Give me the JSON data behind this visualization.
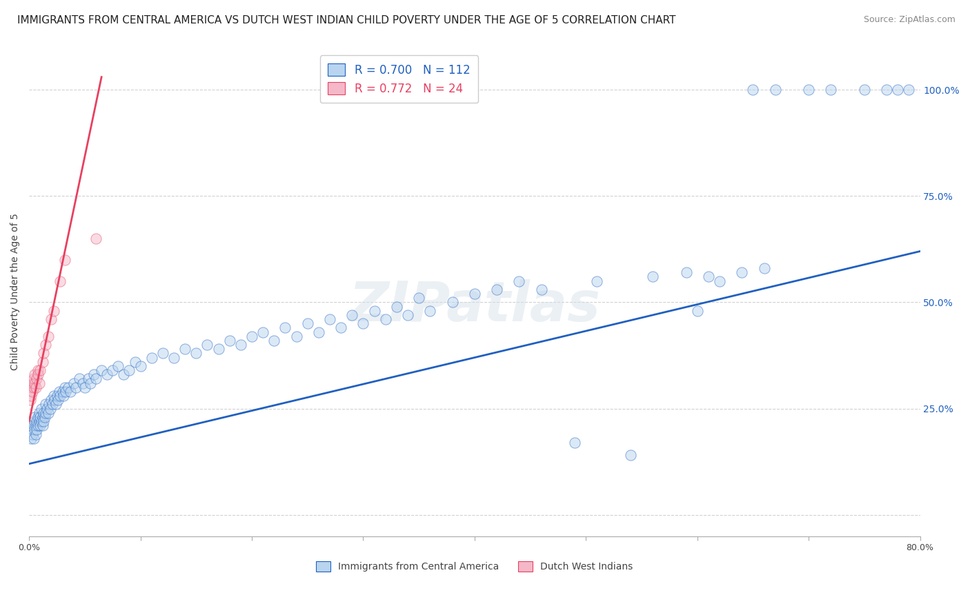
{
  "title": "IMMIGRANTS FROM CENTRAL AMERICA VS DUTCH WEST INDIAN CHILD POVERTY UNDER THE AGE OF 5 CORRELATION CHART",
  "source": "Source: ZipAtlas.com",
  "ylabel": "Child Poverty Under the Age of 5",
  "xlim": [
    0.0,
    0.8
  ],
  "ylim": [
    -0.05,
    1.1
  ],
  "xticks": [
    0.0,
    0.1,
    0.2,
    0.3,
    0.4,
    0.5,
    0.6,
    0.7,
    0.8
  ],
  "xticklabels": [
    "0.0%",
    "",
    "",
    "",
    "",
    "",
    "",
    "",
    "80.0%"
  ],
  "ytick_positions": [
    0.0,
    0.25,
    0.5,
    0.75,
    1.0
  ],
  "yticklabels_right": [
    "",
    "25.0%",
    "50.0%",
    "75.0%",
    "100.0%"
  ],
  "watermark": "ZIPatlas",
  "blue_R": "0.700",
  "blue_N": "112",
  "pink_R": "0.772",
  "pink_N": "24",
  "blue_color": "#b8d4ef",
  "pink_color": "#f5b8c8",
  "blue_line_color": "#2060c0",
  "pink_line_color": "#e84060",
  "legend_label_blue": "Immigrants from Central America",
  "legend_label_pink": "Dutch West Indians",
  "blue_scatter_x": [
    0.002,
    0.003,
    0.003,
    0.004,
    0.004,
    0.005,
    0.005,
    0.005,
    0.006,
    0.006,
    0.007,
    0.007,
    0.008,
    0.008,
    0.009,
    0.009,
    0.01,
    0.01,
    0.011,
    0.011,
    0.012,
    0.012,
    0.013,
    0.013,
    0.014,
    0.015,
    0.015,
    0.016,
    0.017,
    0.018,
    0.019,
    0.02,
    0.021,
    0.022,
    0.023,
    0.024,
    0.025,
    0.026,
    0.027,
    0.028,
    0.03,
    0.031,
    0.032,
    0.033,
    0.035,
    0.037,
    0.04,
    0.042,
    0.045,
    0.048,
    0.05,
    0.053,
    0.055,
    0.058,
    0.06,
    0.065,
    0.07,
    0.075,
    0.08,
    0.085,
    0.09,
    0.095,
    0.1,
    0.11,
    0.12,
    0.13,
    0.14,
    0.15,
    0.16,
    0.17,
    0.18,
    0.19,
    0.2,
    0.21,
    0.22,
    0.23,
    0.24,
    0.25,
    0.26,
    0.27,
    0.28,
    0.29,
    0.3,
    0.31,
    0.32,
    0.33,
    0.34,
    0.35,
    0.36,
    0.38,
    0.4,
    0.42,
    0.44,
    0.46,
    0.49,
    0.51,
    0.54,
    0.56,
    0.6,
    0.62,
    0.65,
    0.67,
    0.7,
    0.72,
    0.75,
    0.77,
    0.78,
    0.79,
    0.59,
    0.61,
    0.64,
    0.66
  ],
  "blue_scatter_y": [
    0.18,
    0.2,
    0.19,
    0.21,
    0.18,
    0.22,
    0.2,
    0.23,
    0.19,
    0.21,
    0.22,
    0.2,
    0.23,
    0.21,
    0.24,
    0.22,
    0.21,
    0.23,
    0.22,
    0.25,
    0.23,
    0.21,
    0.24,
    0.22,
    0.23,
    0.24,
    0.26,
    0.25,
    0.24,
    0.26,
    0.25,
    0.27,
    0.26,
    0.28,
    0.27,
    0.26,
    0.28,
    0.27,
    0.29,
    0.28,
    0.29,
    0.28,
    0.3,
    0.29,
    0.3,
    0.29,
    0.31,
    0.3,
    0.32,
    0.31,
    0.3,
    0.32,
    0.31,
    0.33,
    0.32,
    0.34,
    0.33,
    0.34,
    0.35,
    0.33,
    0.34,
    0.36,
    0.35,
    0.37,
    0.38,
    0.37,
    0.39,
    0.38,
    0.4,
    0.39,
    0.41,
    0.4,
    0.42,
    0.43,
    0.41,
    0.44,
    0.42,
    0.45,
    0.43,
    0.46,
    0.44,
    0.47,
    0.45,
    0.48,
    0.46,
    0.49,
    0.47,
    0.51,
    0.48,
    0.5,
    0.52,
    0.53,
    0.55,
    0.53,
    0.17,
    0.55,
    0.14,
    0.56,
    0.48,
    0.55,
    1.0,
    1.0,
    1.0,
    1.0,
    1.0,
    1.0,
    1.0,
    1.0,
    0.57,
    0.56,
    0.57,
    0.58
  ],
  "pink_scatter_x": [
    0.001,
    0.002,
    0.002,
    0.003,
    0.003,
    0.004,
    0.004,
    0.005,
    0.005,
    0.006,
    0.007,
    0.008,
    0.008,
    0.009,
    0.01,
    0.012,
    0.013,
    0.015,
    0.017,
    0.02,
    0.022,
    0.028,
    0.032,
    0.06
  ],
  "pink_scatter_y": [
    0.27,
    0.28,
    0.3,
    0.29,
    0.31,
    0.3,
    0.32,
    0.31,
    0.33,
    0.3,
    0.32,
    0.34,
    0.33,
    0.31,
    0.34,
    0.36,
    0.38,
    0.4,
    0.42,
    0.46,
    0.48,
    0.55,
    0.6,
    0.65
  ],
  "blue_line_x0": 0.0,
  "blue_line_x1": 0.8,
  "blue_line_y0": 0.12,
  "blue_line_y1": 0.62,
  "pink_line_x0": 0.0,
  "pink_line_x1": 0.065,
  "pink_line_y0": 0.22,
  "pink_line_y1": 1.03,
  "background_color": "#ffffff",
  "grid_color": "#cccccc",
  "title_fontsize": 11,
  "source_fontsize": 9,
  "axis_label_fontsize": 10,
  "tick_fontsize": 9,
  "scatter_size": 120,
  "scatter_alpha": 0.5
}
